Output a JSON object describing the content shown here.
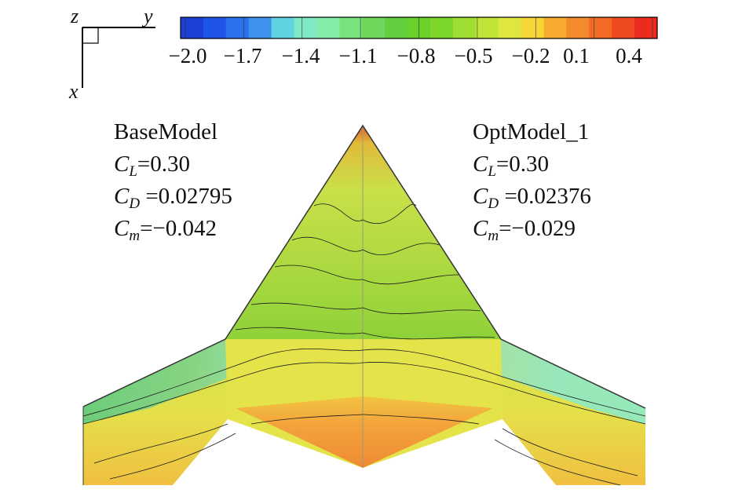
{
  "coordinate_axes": {
    "z": "z",
    "y": "y",
    "x": "x"
  },
  "colorbar": {
    "tick_labels": [
      "−2.0",
      "−1.7",
      "−1.4",
      "−1.1",
      "−0.8",
      "−0.5",
      "−0.2",
      "0.1",
      "0.4"
    ],
    "colors": [
      "#1c3fd6",
      "#1f55e6",
      "#2b71ee",
      "#3f93ee",
      "#5fd3e0",
      "#7fe8c4",
      "#86ecaa",
      "#78e37c",
      "#6ed85c",
      "#62d03e",
      "#6ad12a",
      "#7cd62a",
      "#9edd32",
      "#c0e338",
      "#dfe640",
      "#f4d636",
      "#f6ab2e",
      "#f58a2c",
      "#f26a26",
      "#ef4a22",
      "#ec2a1e"
    ]
  },
  "base_model": {
    "name": "BaseModel",
    "cl_symbol": "C",
    "cl_sub": "L",
    "cl_value": "=0.30",
    "cd_symbol": "C",
    "cd_sub": "D",
    "cd_value": " =0.02795",
    "cm_symbol": "C",
    "cm_sub": "m",
    "cm_value": "=−0.042"
  },
  "opt_model": {
    "name": "OptModel_1",
    "cl_symbol": "C",
    "cl_sub": "L",
    "cl_value": "=0.30",
    "cd_symbol": "C",
    "cd_sub": "D",
    "cd_value": " =0.02376",
    "cm_symbol": "C",
    "cm_sub": "m",
    "cm_value": "=−0.029"
  }
}
